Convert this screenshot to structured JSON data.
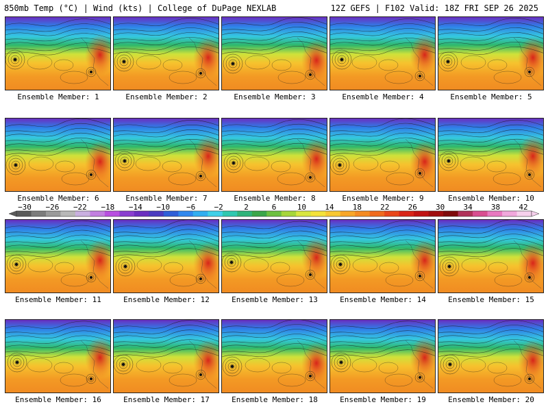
{
  "header": {
    "left_title": "850mb Temp (°C) | Wind (kts) | College of DuPage NEXLAB",
    "right_title": "12Z GEFS | F102 Valid: 18Z FRI SEP 26 2025"
  },
  "member_label_prefix": "Ensemble Member:",
  "members": [
    {
      "label": "Ensemble Member: 1"
    },
    {
      "label": "Ensemble Member: 2"
    },
    {
      "label": "Ensemble Member: 3"
    },
    {
      "label": "Ensemble Member: 4"
    },
    {
      "label": "Ensemble Member: 5"
    },
    {
      "label": "Ensemble Member: 6"
    },
    {
      "label": "Ensemble Member: 7"
    },
    {
      "label": "Ensemble Member: 8"
    },
    {
      "label": "Ensemble Member: 9"
    },
    {
      "label": "Ensemble Member: 10"
    },
    {
      "label": "Ensemble Member: 11"
    },
    {
      "label": "Ensemble Member: 12"
    },
    {
      "label": "Ensemble Member: 13"
    },
    {
      "label": "Ensemble Member: 14"
    },
    {
      "label": "Ensemble Member: 15"
    },
    {
      "label": "Ensemble Member: 16"
    },
    {
      "label": "Ensemble Member: 17"
    },
    {
      "label": "Ensemble Member: 18"
    },
    {
      "label": "Ensemble Member: 19"
    },
    {
      "label": "Ensemble Member: 20"
    }
  ],
  "colorbar": {
    "tick_labels": [
      "−30",
      "−26",
      "−22",
      "−18",
      "−14",
      "−10",
      "−6",
      "−2",
      "2",
      "6",
      "10",
      "14",
      "18",
      "22",
      "26",
      "30",
      "34",
      "38",
      "42"
    ],
    "colors": [
      "#5a5a5a",
      "#7c7c7c",
      "#9a9a9a",
      "#b8b8b8",
      "#c9b0e0",
      "#c27fe0",
      "#b84fe0",
      "#8a3fd0",
      "#6b2fc0",
      "#4b3cc0",
      "#2f5fd8",
      "#2f87ee",
      "#31aef0",
      "#3fd0e8",
      "#2ec8b0",
      "#2fb37a",
      "#3ba64a",
      "#6cc040",
      "#a6d63a",
      "#d8e640",
      "#f4e23a",
      "#f8c832",
      "#f8a628",
      "#f48a22",
      "#ef6a1e",
      "#e8461a",
      "#d82418",
      "#c01212",
      "#a00d0d",
      "#7e0a0a",
      "#b0325a",
      "#d84e90",
      "#e878c0",
      "#f0a8dc",
      "#f6d0ec"
    ]
  }
}
